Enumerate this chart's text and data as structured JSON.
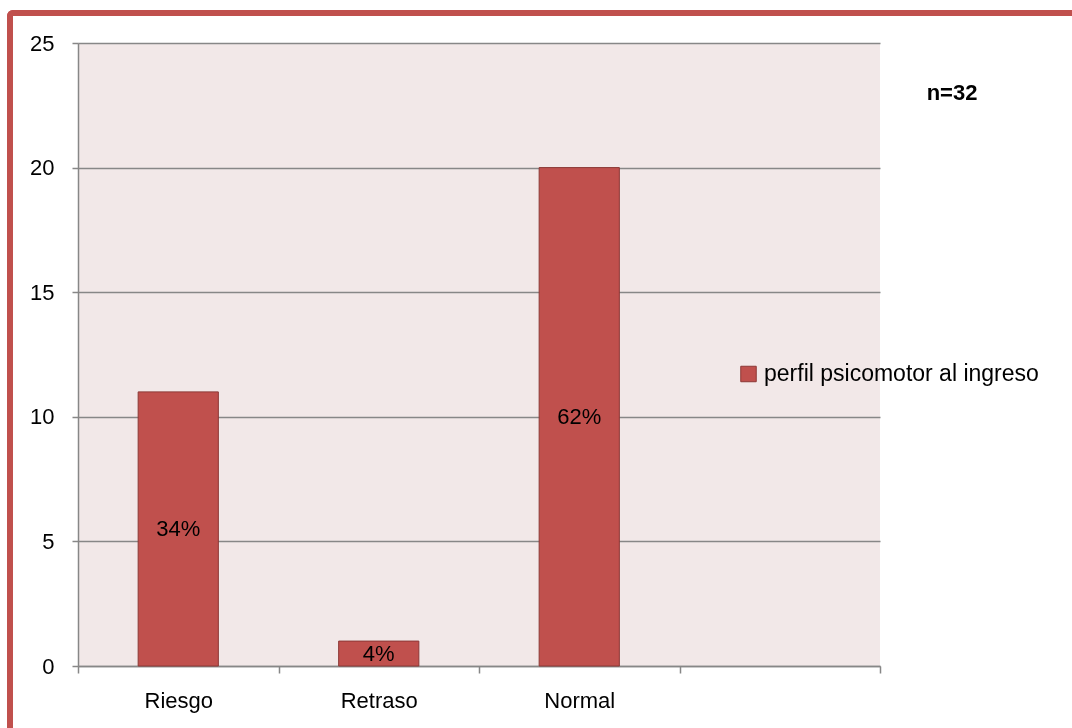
{
  "chart_data": {
    "type": "bar",
    "categories": [
      "Riesgo",
      "Retraso",
      "Normal",
      null
    ],
    "series": [
      {
        "name": "perfil psicomotor al ingreso",
        "color": "#c0504d",
        "values": [
          11,
          1,
          20,
          null
        ]
      }
    ],
    "ylim": [
      0,
      25
    ],
    "yticks": [
      0,
      5,
      10,
      15,
      20,
      25
    ],
    "grid": "y",
    "legend": "right",
    "annotations": [
      "n=32",
      "34%",
      "4%",
      "62%"
    ]
  }
}
